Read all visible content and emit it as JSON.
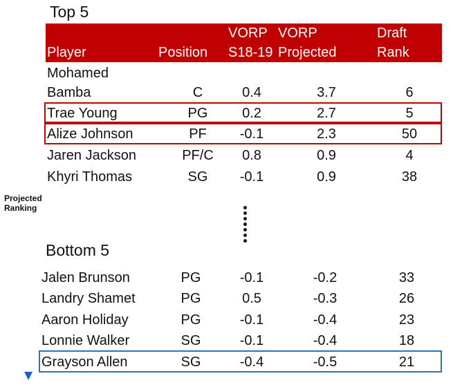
{
  "top_title": "Top 5",
  "bottom_title": "Bottom 5",
  "header": {
    "player": "Player",
    "position": "Position",
    "vorp1_line1": "VORP",
    "vorp1_line2": "S18-19",
    "vorp2_line1": "VORP",
    "vorp2_line2": "Projected",
    "draft_line1": "Draft",
    "draft_line2": "Rank"
  },
  "top_rows": [
    {
      "player_line1": "Mohamed",
      "player": "Bamba",
      "position": "C",
      "vorp_s1819": "0.4",
      "vorp_projected": "3.7",
      "draft_rank": "6"
    },
    {
      "player": "Trae Young",
      "position": "PG",
      "vorp_s1819": "0.2",
      "vorp_projected": "2.7",
      "draft_rank": "5"
    },
    {
      "player": "Alize Johnson",
      "position": "PF",
      "vorp_s1819": "-0.1",
      "vorp_projected": "2.3",
      "draft_rank": "50"
    },
    {
      "player": "Jaren Jackson",
      "position": "PF/C",
      "vorp_s1819": "0.8",
      "vorp_projected": "0.9",
      "draft_rank": "4"
    },
    {
      "player": "Khyri Thomas",
      "position": "SG",
      "vorp_s1819": "-0.1",
      "vorp_projected": "0.9",
      "draft_rank": "38"
    }
  ],
  "bottom_rows": [
    {
      "player": "Jalen Brunson",
      "position": "PG",
      "vorp_s1819": "-0.1",
      "vorp_projected": "-0.2",
      "draft_rank": "33"
    },
    {
      "player": "Landry Shamet",
      "position": "PG",
      "vorp_s1819": "0.5",
      "vorp_projected": "-0.3",
      "draft_rank": "26"
    },
    {
      "player": "Aaron Holiday",
      "position": "PG",
      "vorp_s1819": "-0.1",
      "vorp_projected": "-0.4",
      "draft_rank": "23"
    },
    {
      "player": "Lonnie Walker",
      "position": "SG",
      "vorp_s1819": "-0.1",
      "vorp_projected": "-0.4",
      "draft_rank": "18"
    },
    {
      "player": "Grayson Allen",
      "position": "SG",
      "vorp_s1819": "-0.4",
      "vorp_projected": "-0.5",
      "draft_rank": "21"
    }
  ],
  "arrow_label_line1": "Projected",
  "arrow_label_line2": "Ranking",
  "colors": {
    "header_bg": "#c00000",
    "highlight_red": "#c00000",
    "highlight_blue": "#2e75b6",
    "arrow_top": "#c0392b",
    "arrow_bottom": "#1f5fbf"
  }
}
